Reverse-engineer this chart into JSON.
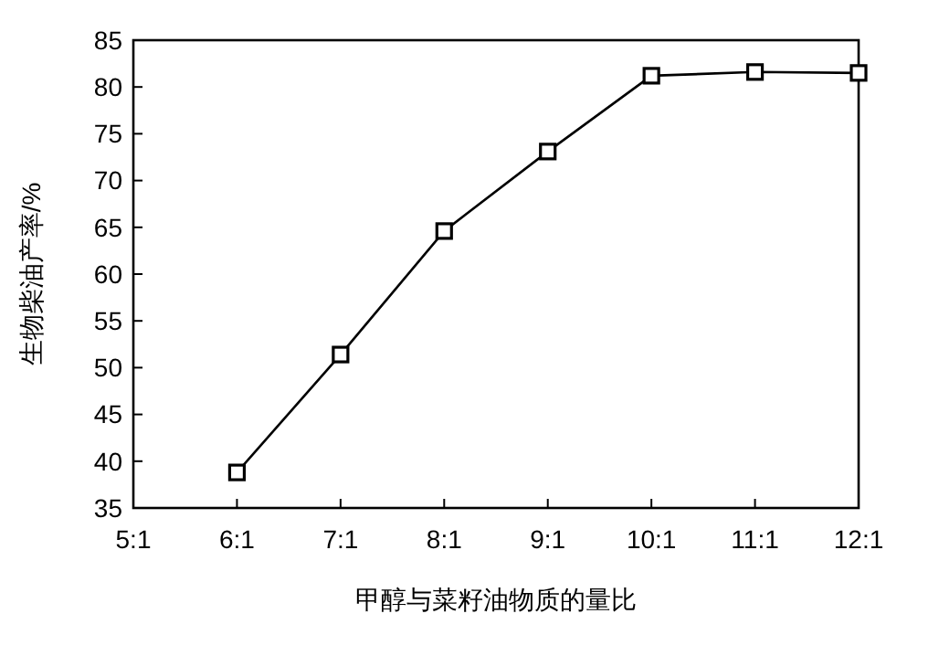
{
  "chart_data": {
    "type": "line",
    "xlabel": "甲醇与菜籽油物质的量比",
    "ylabel": "生物柴油产率/%",
    "categories": [
      "5:1",
      "6:1",
      "7:1",
      "8:1",
      "9:1",
      "10:1",
      "11:1",
      "12:1"
    ],
    "values": [
      null,
      38.8,
      51.4,
      64.6,
      73.1,
      81.2,
      81.6,
      81.5
    ],
    "color": "#000000",
    "marker": "square",
    "line_style": "solid",
    "ylim": [
      35,
      85
    ],
    "yticks": [
      35,
      40,
      45,
      50,
      55,
      60,
      65,
      70,
      75,
      80,
      85
    ]
  }
}
